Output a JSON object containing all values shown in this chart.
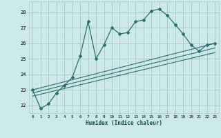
{
  "xlabel": "Humidex (Indice chaleur)",
  "bg_color": "#cce8e8",
  "grid_color": "#aacccc",
  "line_color": "#2d6e6e",
  "xlim": [
    -0.5,
    23.5
  ],
  "ylim": [
    21.5,
    28.7
  ],
  "yticks": [
    22,
    23,
    24,
    25,
    26,
    27,
    28
  ],
  "xticks": [
    0,
    1,
    2,
    3,
    4,
    5,
    6,
    7,
    8,
    9,
    10,
    11,
    12,
    13,
    14,
    15,
    16,
    17,
    18,
    19,
    20,
    21,
    22,
    23
  ],
  "series1_x": [
    0,
    1,
    2,
    3,
    4,
    5,
    6,
    7,
    8,
    9,
    10,
    11,
    12,
    13,
    14,
    15,
    16,
    17,
    18,
    19,
    20,
    21,
    22,
    23
  ],
  "series1_y": [
    23.0,
    21.8,
    22.1,
    22.8,
    23.3,
    23.8,
    25.2,
    27.4,
    25.0,
    25.9,
    27.0,
    26.6,
    26.7,
    27.4,
    27.5,
    28.1,
    28.2,
    27.8,
    27.2,
    26.6,
    25.9,
    25.5,
    25.9,
    26.0
  ],
  "series2_x": [
    0,
    23
  ],
  "series2_y": [
    23.0,
    26.0
  ],
  "series3_x": [
    0,
    23
  ],
  "series3_y": [
    22.8,
    25.7
  ],
  "series4_x": [
    0,
    23
  ],
  "series4_y": [
    22.6,
    25.4
  ]
}
